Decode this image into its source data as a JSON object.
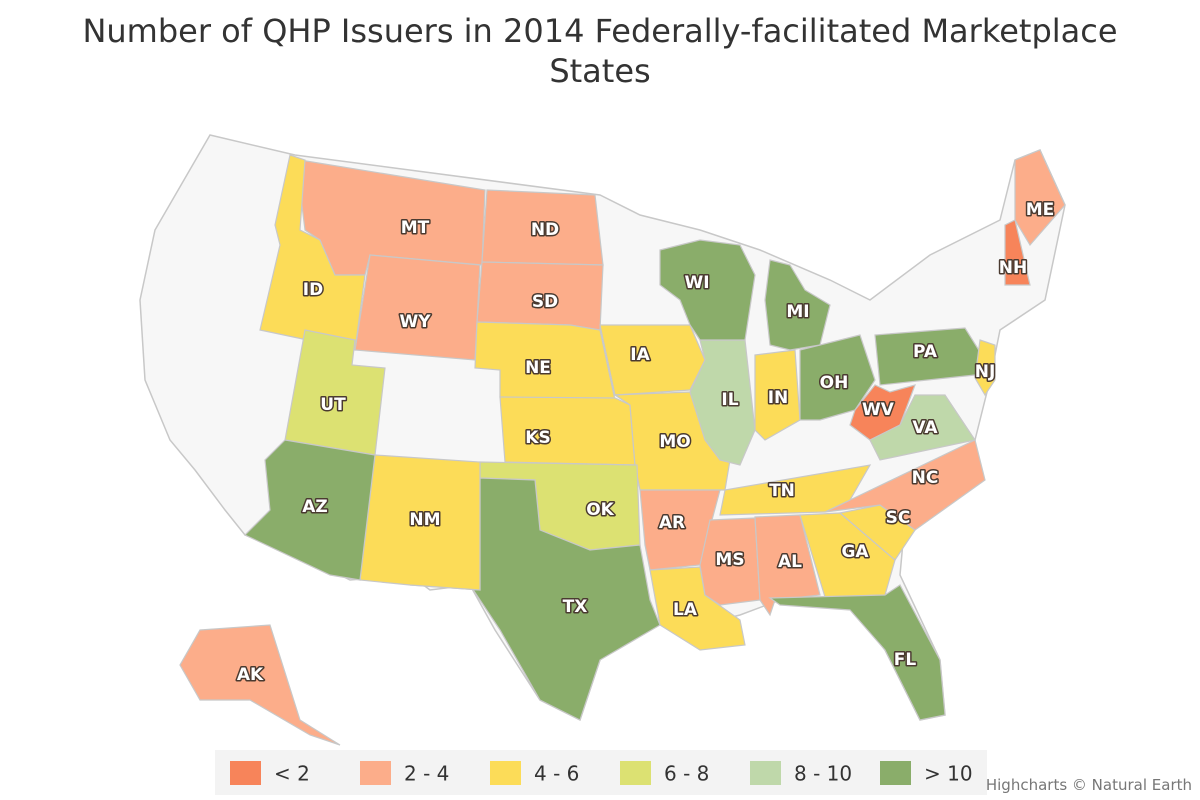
{
  "title": "Number of QHP Issuers in 2014 Federally-facilitated Marketplace States",
  "legend": [
    {
      "label": "< 2",
      "color": "#f7845a"
    },
    {
      "label": "2 - 4",
      "color": "#fcad8a"
    },
    {
      "label": "4 - 6",
      "color": "#fcdc58"
    },
    {
      "label": "6 - 8",
      "color": "#dce172"
    },
    {
      "label": "8 - 10",
      "color": "#bfd8aa"
    },
    {
      "label": "> 10",
      "color": "#8aad6a"
    }
  ],
  "states": [
    {
      "label": "MT",
      "class": 1
    },
    {
      "label": "ND",
      "class": 1
    },
    {
      "label": "SD",
      "class": 1
    },
    {
      "label": "WY",
      "class": 1
    },
    {
      "label": "ID",
      "class": 2
    },
    {
      "label": "UT",
      "class": 3
    },
    {
      "label": "NE",
      "class": 2
    },
    {
      "label": "IA",
      "class": 2
    },
    {
      "label": "KS",
      "class": 2
    },
    {
      "label": "MO",
      "class": 2
    },
    {
      "label": "OK",
      "class": 3
    },
    {
      "label": "TX",
      "class": 5
    },
    {
      "label": "NM",
      "class": 2
    },
    {
      "label": "AZ",
      "class": 5
    },
    {
      "label": "AR",
      "class": 1
    },
    {
      "label": "LA",
      "class": 2
    },
    {
      "label": "MS",
      "class": 1
    },
    {
      "label": "AL",
      "class": 1
    },
    {
      "label": "GA",
      "class": 2
    },
    {
      "label": "FL",
      "class": 5
    },
    {
      "label": "SC",
      "class": 2
    },
    {
      "label": "NC",
      "class": 1
    },
    {
      "label": "TN",
      "class": 2
    },
    {
      "label": "IL",
      "class": 4
    },
    {
      "label": "IN",
      "class": 2
    },
    {
      "label": "OH",
      "class": 5
    },
    {
      "label": "MI",
      "class": 5
    },
    {
      "label": "WI",
      "class": 5
    },
    {
      "label": "PA",
      "class": 5
    },
    {
      "label": "WV",
      "class": 0
    },
    {
      "label": "VA",
      "class": 4
    },
    {
      "label": "NJ",
      "class": 2
    },
    {
      "label": "NH",
      "class": 0
    },
    {
      "label": "ME",
      "class": 1
    },
    {
      "label": "AK",
      "class": 1
    }
  ],
  "credits": "Highcharts © Natural Earth"
}
